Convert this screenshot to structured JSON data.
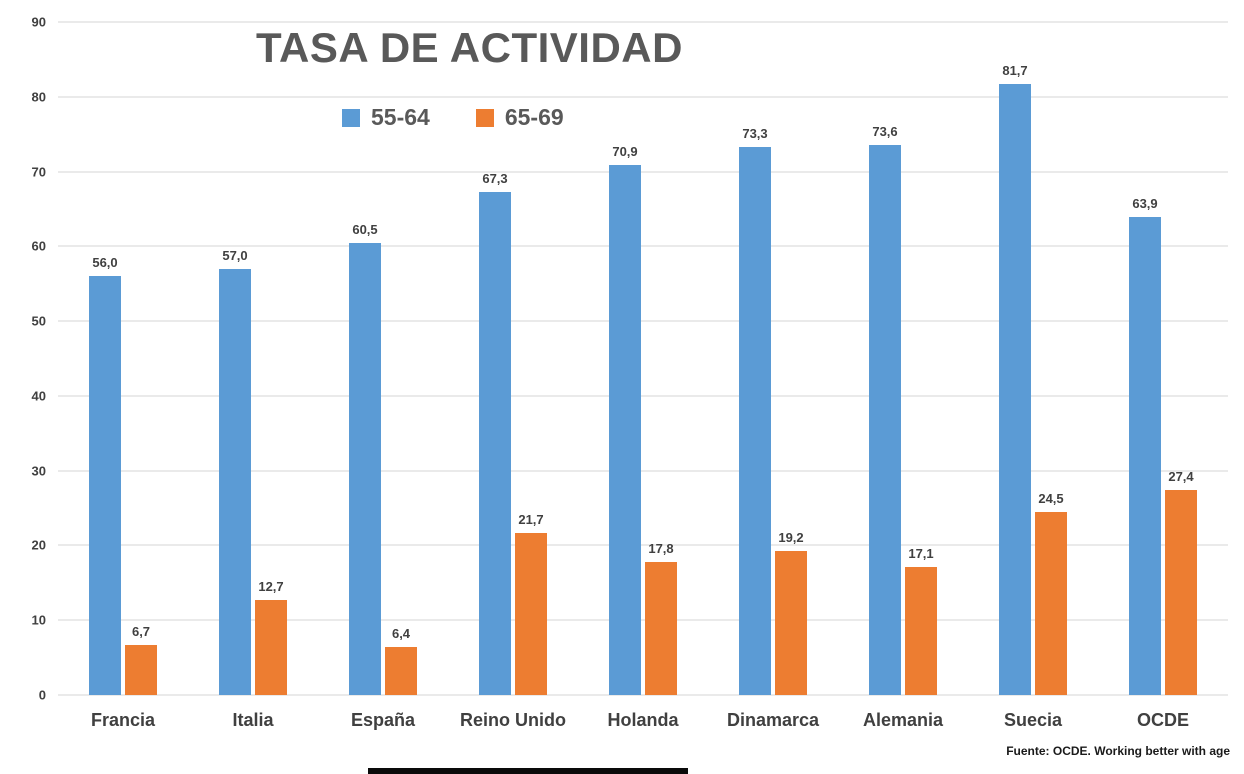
{
  "chart_data": {
    "type": "bar",
    "title": "TASA DE ACTIVIDAD",
    "categories": [
      "Francia",
      "Italia",
      "España",
      "Reino Unido",
      "Holanda",
      "Dinamarca",
      "Alemania",
      "Suecia",
      "OCDE"
    ],
    "series": [
      {
        "name": "55-64",
        "color": "#5b9bd5",
        "values": [
          56.0,
          57.0,
          60.5,
          67.3,
          70.9,
          73.3,
          73.6,
          81.7,
          63.9
        ]
      },
      {
        "name": "65-69",
        "color": "#ed7d31",
        "values": [
          6.7,
          12.7,
          6.4,
          21.7,
          17.8,
          19.2,
          17.1,
          24.5,
          27.4
        ]
      }
    ],
    "data_labels": {
      "55-64": [
        "56,0",
        "57,0",
        "60,5",
        "67,3",
        "70,9",
        "73,3",
        "73,6",
        "81,7",
        "63,9"
      ],
      "65-69": [
        "6,7",
        "12,7",
        "6,4",
        "21,7",
        "17,8",
        "19,2",
        "17,1",
        "24,5",
        "27,4"
      ]
    },
    "ylim": [
      0,
      90
    ],
    "ytick_step": 10,
    "ytick_labels": [
      "0",
      "10",
      "20",
      "30",
      "40",
      "50",
      "60",
      "70",
      "80",
      "90"
    ],
    "grid": true,
    "legend_position": "top",
    "decimal_separator": ",",
    "source": "Fuente: OCDE. Working better with age"
  }
}
